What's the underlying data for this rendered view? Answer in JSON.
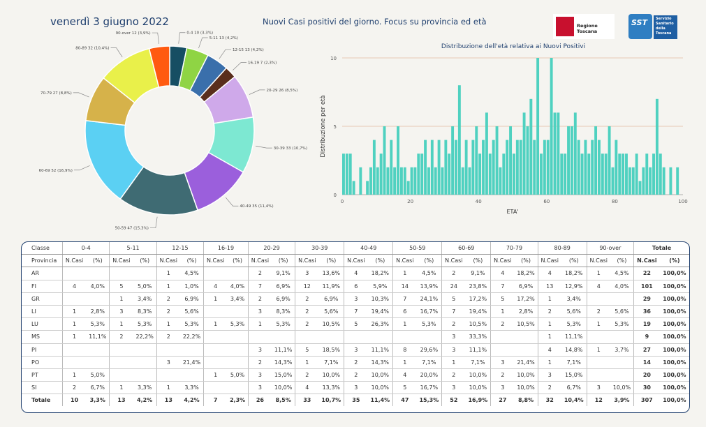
{
  "header": {
    "date": "venerdì 3 giugno 2022",
    "title": "Nuovi Casi positivi del giorno. Focus su provincia ed età",
    "logo_regione": "Regione Toscana",
    "logo_sst_mark": "SST",
    "logo_sst_text": "Servizio Sanitario della Toscana"
  },
  "chart_data": [
    {
      "type": "pie",
      "subtype": "donut",
      "slices": [
        {
          "label": "0-4",
          "value": 10,
          "pct": "3,3%",
          "color": "#164e63"
        },
        {
          "label": "5-11",
          "value": 13,
          "pct": "4,2%",
          "color": "#8fd444"
        },
        {
          "label": "12-15",
          "value": 13,
          "pct": "4,2%",
          "color": "#3a6fab"
        },
        {
          "label": "16-19",
          "value": 7,
          "pct": "2,3%",
          "color": "#5a2e1c"
        },
        {
          "label": "20-29",
          "value": 26,
          "pct": "8,5%",
          "color": "#cfa9ea"
        },
        {
          "label": "30-39",
          "value": 33,
          "pct": "10,7%",
          "color": "#7de8d2"
        },
        {
          "label": "40-49",
          "value": 35,
          "pct": "11,4%",
          "color": "#9b5fdc"
        },
        {
          "label": "50-59",
          "value": 47,
          "pct": "15,3%",
          "color": "#3f6b73"
        },
        {
          "label": "60-69",
          "value": 52,
          "pct": "16,9%",
          "color": "#5bd0f3"
        },
        {
          "label": "70-79",
          "value": 27,
          "pct": "8,8%",
          "color": "#d6b24a"
        },
        {
          "label": "80-89",
          "value": 32,
          "pct": "10,4%",
          "color": "#e9f04a"
        },
        {
          "label": "90-over",
          "value": 12,
          "pct": "3,9%",
          "color": "#ff5a10"
        }
      ]
    },
    {
      "type": "bar",
      "title": "Distribuzione dell'età relativa ai Nuovi Positivi",
      "xlabel": "ETA'",
      "ylabel": "Distribuzione per età",
      "xlim": [
        0,
        100
      ],
      "ylim": [
        0,
        10
      ],
      "xticks": [
        0,
        20,
        40,
        60,
        80,
        100
      ],
      "yticks": [
        0,
        5,
        10
      ],
      "color": "#4fd1c0",
      "x": [
        0,
        1,
        2,
        3,
        5,
        7,
        8,
        9,
        10,
        11,
        12,
        13,
        14,
        15,
        16,
        17,
        18,
        19,
        20,
        21,
        22,
        23,
        24,
        25,
        26,
        27,
        28,
        29,
        30,
        31,
        32,
        33,
        34,
        35,
        36,
        37,
        38,
        39,
        40,
        41,
        42,
        43,
        44,
        45,
        46,
        47,
        48,
        49,
        50,
        51,
        52,
        53,
        54,
        55,
        56,
        57,
        58,
        59,
        60,
        61,
        62,
        63,
        64,
        65,
        66,
        67,
        68,
        69,
        70,
        71,
        72,
        73,
        74,
        75,
        76,
        77,
        78,
        79,
        80,
        81,
        82,
        83,
        84,
        85,
        86,
        87,
        88,
        89,
        90,
        91,
        92,
        93,
        94,
        96,
        98
      ],
      "values": [
        3,
        3,
        3,
        1,
        2,
        1,
        2,
        4,
        2,
        3,
        5,
        2,
        4,
        2,
        5,
        2,
        2,
        1,
        2,
        2,
        3,
        3,
        4,
        2,
        4,
        2,
        4,
        2,
        4,
        3,
        5,
        4,
        8,
        2,
        4,
        2,
        4,
        5,
        3,
        4,
        6,
        3,
        4,
        5,
        2,
        3,
        4,
        5,
        3,
        4,
        4,
        6,
        5,
        7,
        4,
        10,
        3,
        4,
        4,
        10,
        6,
        6,
        3,
        3,
        5,
        5,
        6,
        4,
        3,
        4,
        3,
        4,
        5,
        4,
        3,
        3,
        5,
        2,
        4,
        3,
        3,
        3,
        2,
        2,
        3,
        1,
        2,
        3,
        2,
        3,
        7,
        3,
        2,
        2,
        2
      ]
    }
  ],
  "table": {
    "classes": [
      "0-4",
      "5-11",
      "12-15",
      "16-19",
      "20-29",
      "30-39",
      "40-49",
      "50-59",
      "60-69",
      "70-79",
      "80-89",
      "90-over"
    ],
    "header_class": "Classe",
    "header_province": "Provincia",
    "header_total": "Totale",
    "sub_n": "N.Casi",
    "sub_pct": "(%)",
    "rows": [
      {
        "prov": "AR",
        "cells": [
          [
            "",
            ""
          ],
          [
            "",
            ""
          ],
          [
            "1",
            "4,5%"
          ],
          [
            "",
            ""
          ],
          [
            "2",
            "9,1%"
          ],
          [
            "3",
            "13,6%"
          ],
          [
            "4",
            "18,2%"
          ],
          [
            "1",
            "4,5%"
          ],
          [
            "2",
            "9,1%"
          ],
          [
            "4",
            "18,2%"
          ],
          [
            "4",
            "18,2%"
          ],
          [
            "1",
            "4,5%"
          ]
        ],
        "tot": "22",
        "totpct": "100,0%"
      },
      {
        "prov": "FI",
        "cells": [
          [
            "4",
            "4,0%"
          ],
          [
            "5",
            "5,0%"
          ],
          [
            "1",
            "1,0%"
          ],
          [
            "4",
            "4,0%"
          ],
          [
            "7",
            "6,9%"
          ],
          [
            "12",
            "11,9%"
          ],
          [
            "6",
            "5,9%"
          ],
          [
            "14",
            "13,9%"
          ],
          [
            "24",
            "23,8%"
          ],
          [
            "7",
            "6,9%"
          ],
          [
            "13",
            "12,9%"
          ],
          [
            "4",
            "4,0%"
          ]
        ],
        "tot": "101",
        "totpct": "100,0%"
      },
      {
        "prov": "GR",
        "cells": [
          [
            "",
            ""
          ],
          [
            "1",
            "3,4%"
          ],
          [
            "2",
            "6,9%"
          ],
          [
            "1",
            "3,4%"
          ],
          [
            "2",
            "6,9%"
          ],
          [
            "2",
            "6,9%"
          ],
          [
            "3",
            "10,3%"
          ],
          [
            "7",
            "24,1%"
          ],
          [
            "5",
            "17,2%"
          ],
          [
            "5",
            "17,2%"
          ],
          [
            "1",
            "3,4%"
          ],
          [
            "",
            ""
          ]
        ],
        "tot": "29",
        "totpct": "100,0%"
      },
      {
        "prov": "LI",
        "cells": [
          [
            "1",
            "2,8%"
          ],
          [
            "3",
            "8,3%"
          ],
          [
            "2",
            "5,6%"
          ],
          [
            "",
            ""
          ],
          [
            "3",
            "8,3%"
          ],
          [
            "2",
            "5,6%"
          ],
          [
            "7",
            "19,4%"
          ],
          [
            "6",
            "16,7%"
          ],
          [
            "7",
            "19,4%"
          ],
          [
            "1",
            "2,8%"
          ],
          [
            "2",
            "5,6%"
          ],
          [
            "2",
            "5,6%"
          ]
        ],
        "tot": "36",
        "totpct": "100,0%"
      },
      {
        "prov": "LU",
        "cells": [
          [
            "1",
            "5,3%"
          ],
          [
            "1",
            "5,3%"
          ],
          [
            "1",
            "5,3%"
          ],
          [
            "1",
            "5,3%"
          ],
          [
            "1",
            "5,3%"
          ],
          [
            "2",
            "10,5%"
          ],
          [
            "5",
            "26,3%"
          ],
          [
            "1",
            "5,3%"
          ],
          [
            "2",
            "10,5%"
          ],
          [
            "2",
            "10,5%"
          ],
          [
            "1",
            "5,3%"
          ],
          [
            "1",
            "5,3%"
          ]
        ],
        "tot": "19",
        "totpct": "100,0%"
      },
      {
        "prov": "MS",
        "cells": [
          [
            "1",
            "11,1%"
          ],
          [
            "2",
            "22,2%"
          ],
          [
            "2",
            "22,2%"
          ],
          [
            "",
            ""
          ],
          [
            "",
            ""
          ],
          [
            "",
            ""
          ],
          [
            "",
            ""
          ],
          [
            "",
            ""
          ],
          [
            "3",
            "33,3%"
          ],
          [
            "",
            ""
          ],
          [
            "1",
            "11,1%"
          ],
          [
            "",
            ""
          ]
        ],
        "tot": "9",
        "totpct": "100,0%"
      },
      {
        "prov": "PI",
        "cells": [
          [
            "",
            ""
          ],
          [
            "",
            ""
          ],
          [
            "",
            ""
          ],
          [
            "",
            ""
          ],
          [
            "3",
            "11,1%"
          ],
          [
            "5",
            "18,5%"
          ],
          [
            "3",
            "11,1%"
          ],
          [
            "8",
            "29,6%"
          ],
          [
            "3",
            "11,1%"
          ],
          [
            "",
            ""
          ],
          [
            "4",
            "14,8%"
          ],
          [
            "1",
            "3,7%"
          ]
        ],
        "tot": "27",
        "totpct": "100,0%"
      },
      {
        "prov": "PO",
        "cells": [
          [
            "",
            ""
          ],
          [
            "",
            ""
          ],
          [
            "3",
            "21,4%"
          ],
          [
            "",
            ""
          ],
          [
            "2",
            "14,3%"
          ],
          [
            "1",
            "7,1%"
          ],
          [
            "2",
            "14,3%"
          ],
          [
            "1",
            "7,1%"
          ],
          [
            "1",
            "7,1%"
          ],
          [
            "3",
            "21,4%"
          ],
          [
            "1",
            "7,1%"
          ],
          [
            "",
            ""
          ]
        ],
        "tot": "14",
        "totpct": "100,0%"
      },
      {
        "prov": "PT",
        "cells": [
          [
            "1",
            "5,0%"
          ],
          [
            "",
            ""
          ],
          [
            "",
            ""
          ],
          [
            "1",
            "5,0%"
          ],
          [
            "3",
            "15,0%"
          ],
          [
            "2",
            "10,0%"
          ],
          [
            "2",
            "10,0%"
          ],
          [
            "4",
            "20,0%"
          ],
          [
            "2",
            "10,0%"
          ],
          [
            "2",
            "10,0%"
          ],
          [
            "3",
            "15,0%"
          ],
          [
            "",
            ""
          ]
        ],
        "tot": "20",
        "totpct": "100,0%"
      },
      {
        "prov": "SI",
        "cells": [
          [
            "2",
            "6,7%"
          ],
          [
            "1",
            "3,3%"
          ],
          [
            "1",
            "3,3%"
          ],
          [
            "",
            ""
          ],
          [
            "3",
            "10,0%"
          ],
          [
            "4",
            "13,3%"
          ],
          [
            "3",
            "10,0%"
          ],
          [
            "5",
            "16,7%"
          ],
          [
            "3",
            "10,0%"
          ],
          [
            "3",
            "10,0%"
          ],
          [
            "2",
            "6,7%"
          ],
          [
            "3",
            "10,0%"
          ]
        ],
        "tot": "30",
        "totpct": "100,0%"
      }
    ],
    "total_row": {
      "prov": "Totale",
      "cells": [
        [
          "10",
          "3,3%"
        ],
        [
          "13",
          "4,2%"
        ],
        [
          "13",
          "4,2%"
        ],
        [
          "7",
          "2,3%"
        ],
        [
          "26",
          "8,5%"
        ],
        [
          "33",
          "10,7%"
        ],
        [
          "35",
          "11,4%"
        ],
        [
          "47",
          "15,3%"
        ],
        [
          "52",
          "16,9%"
        ],
        [
          "27",
          "8,8%"
        ],
        [
          "32",
          "10,4%"
        ],
        [
          "12",
          "3,9%"
        ]
      ],
      "tot": "307",
      "totpct": "100,0%"
    }
  }
}
